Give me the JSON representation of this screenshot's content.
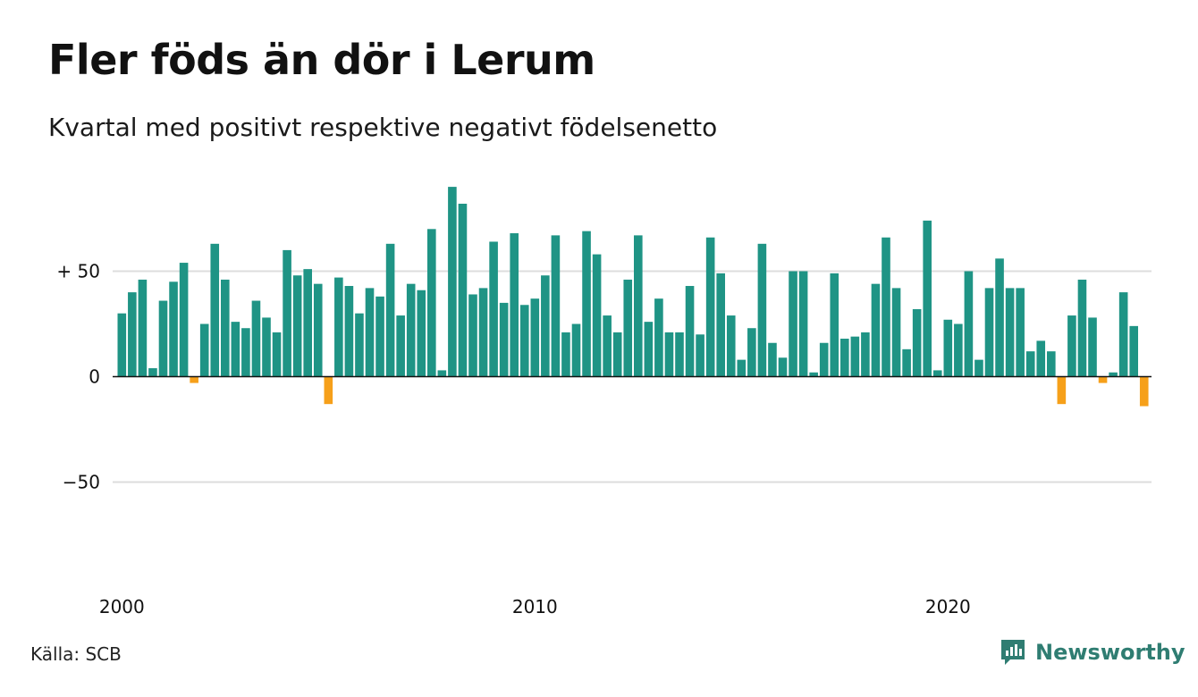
{
  "header": {
    "title": "Fler föds än dör i Lerum",
    "subtitle": "Kvartal med positivt respektive negativt födelsenetto"
  },
  "footer": {
    "source": "Källa: SCB",
    "brand": "Newsworthy",
    "brand_icon": "newsworthy-logo-icon",
    "brand_color": "#2f7d72"
  },
  "chart_data": {
    "type": "bar",
    "title": "Fler föds än dör i Lerum",
    "subtitle": "Kvartal med positivt respektive negativt födelsenetto",
    "xlabel": "",
    "ylabel": "",
    "ylim": [
      -100,
      100
    ],
    "yticks": [
      {
        "value": 50,
        "label": "+ 50"
      },
      {
        "value": 0,
        "label": "0"
      },
      {
        "value": -50,
        "label": "−50"
      }
    ],
    "xticks": [
      {
        "value": 2000,
        "label": "2000"
      },
      {
        "value": 2010,
        "label": "2010"
      },
      {
        "value": 2020,
        "label": "2020"
      }
    ],
    "x_start": "2000 Q1",
    "grid": true,
    "positive_color": "#1f9485",
    "negative_color": "#f6a01a",
    "values": [
      30,
      40,
      46,
      4,
      36,
      45,
      54,
      -3,
      25,
      63,
      46,
      26,
      23,
      36,
      28,
      21,
      60,
      48,
      51,
      44,
      -13,
      47,
      43,
      30,
      42,
      38,
      63,
      29,
      44,
      41,
      70,
      3,
      90,
      82,
      39,
      42,
      64,
      35,
      68,
      34,
      37,
      48,
      67,
      21,
      25,
      69,
      58,
      29,
      21,
      46,
      67,
      26,
      37,
      21,
      21,
      43,
      20,
      66,
      49,
      29,
      8,
      23,
      63,
      16,
      9,
      50,
      50,
      2,
      16,
      49,
      18,
      19,
      21,
      44,
      66,
      42,
      13,
      32,
      74,
      3,
      27,
      25,
      50,
      8,
      42,
      56,
      42,
      42,
      12,
      17,
      12,
      -13,
      29,
      46,
      28,
      -3,
      2,
      40,
      24,
      -14
    ]
  }
}
